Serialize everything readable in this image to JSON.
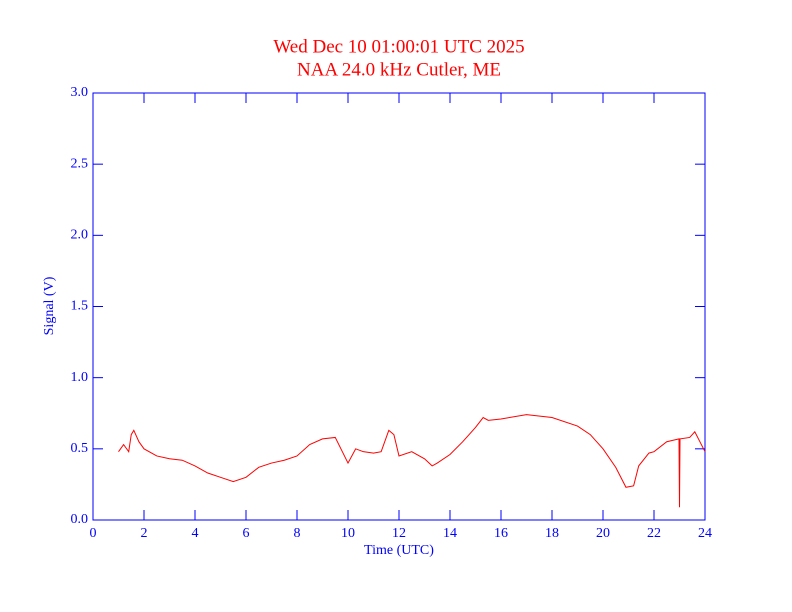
{
  "chart_data": {
    "type": "line",
    "title": "Wed Dec 10 01:00:01 UTC 2025",
    "subtitle": "NAA 24.0 kHz Cutler, ME",
    "x_label": "Time (UTC)",
    "y_label": "Signal (V)",
    "xlim": [
      0,
      24
    ],
    "ylim": [
      0,
      3
    ],
    "xticks": [
      0,
      2,
      4,
      6,
      8,
      10,
      12,
      14,
      16,
      18,
      20,
      22,
      24
    ],
    "yticks": [
      {
        "value": 0,
        "label": "0.0"
      },
      0.5,
      {
        "value": 1,
        "label": "1.0"
      },
      1.5,
      {
        "value": 2,
        "label": "2.0"
      },
      2.5,
      {
        "value": 3,
        "label": "3.0"
      }
    ],
    "x": [
      1.0,
      1.2,
      1.4,
      1.5,
      1.6,
      1.8,
      2.0,
      2.5,
      3.0,
      3.5,
      4.0,
      4.5,
      5.0,
      5.5,
      6.0,
      6.5,
      7.0,
      7.5,
      8.0,
      8.5,
      9.0,
      9.5,
      10.0,
      10.3,
      10.6,
      11.0,
      11.3,
      11.6,
      11.8,
      12.0,
      12.5,
      13.0,
      13.3,
      13.5,
      14.0,
      14.5,
      15.0,
      15.3,
      15.5,
      16.0,
      17.0,
      18.0,
      19.0,
      19.5,
      20.0,
      20.5,
      20.9,
      21.2,
      21.4,
      21.8,
      22.0,
      22.5,
      22.98,
      23.0,
      23.02,
      23.4,
      23.6,
      24.0
    ],
    "series": [
      {
        "name": "Signal",
        "color": "#ff0000",
        "values": [
          0.48,
          0.53,
          0.48,
          0.6,
          0.63,
          0.55,
          0.5,
          0.45,
          0.43,
          0.42,
          0.38,
          0.33,
          0.3,
          0.27,
          0.3,
          0.37,
          0.4,
          0.42,
          0.45,
          0.53,
          0.57,
          0.58,
          0.4,
          0.5,
          0.48,
          0.47,
          0.48,
          0.63,
          0.6,
          0.45,
          0.48,
          0.43,
          0.38,
          0.4,
          0.46,
          0.55,
          0.65,
          0.72,
          0.7,
          0.71,
          0.74,
          0.72,
          0.66,
          0.6,
          0.5,
          0.37,
          0.23,
          0.24,
          0.38,
          0.47,
          0.48,
          0.55,
          0.57,
          0.09,
          0.57,
          0.58,
          0.62,
          0.48
        ]
      }
    ]
  }
}
